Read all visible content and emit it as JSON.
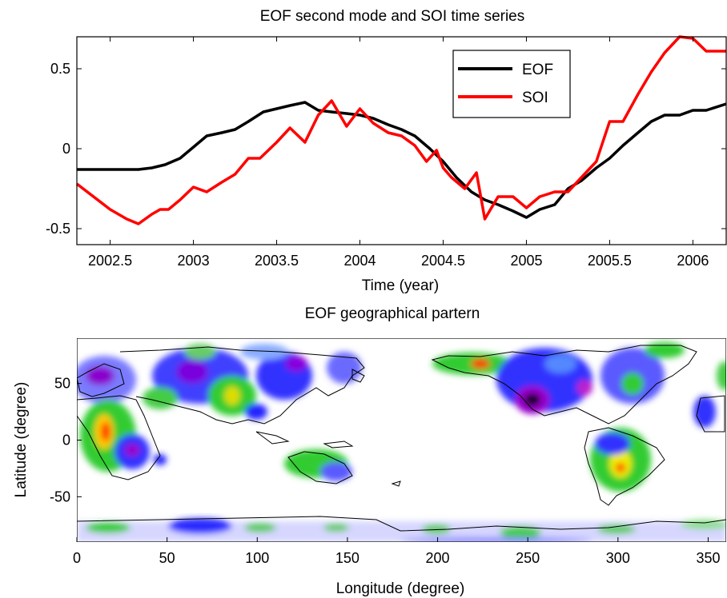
{
  "colors": {
    "eof": "#000000",
    "soi": "#ff0000",
    "map_background": "#ffffff",
    "coastline": "#000000"
  },
  "chart_data": [
    {
      "type": "line",
      "title": "EOF second mode and SOI time series",
      "xlabel": "Time (year)",
      "ylabel": "",
      "xlim": [
        2002.3,
        2006.2
      ],
      "ylim": [
        -0.6,
        0.7
      ],
      "xticks": [
        "2002.5",
        "2003",
        "2003.5",
        "2004",
        "2004.5",
        "2005",
        "2005.5",
        "2006"
      ],
      "yticks": [
        "-0.5",
        "0",
        "0.5"
      ],
      "grid": false,
      "legend": {
        "position": "top-right",
        "entries": [
          "EOF",
          "SOI"
        ]
      },
      "series": [
        {
          "name": "EOF",
          "x": [
            2002.3,
            2002.5,
            2002.67,
            2002.75,
            2002.83,
            2002.92,
            2003.0,
            2003.08,
            2003.17,
            2003.25,
            2003.33,
            2003.42,
            2003.5,
            2003.58,
            2003.67,
            2003.75,
            2003.83,
            2003.92,
            2004.0,
            2004.08,
            2004.17,
            2004.25,
            2004.33,
            2004.42,
            2004.5,
            2004.58,
            2004.67,
            2004.75,
            2004.83,
            2004.92,
            2005.0,
            2005.08,
            2005.17,
            2005.25,
            2005.33,
            2005.42,
            2005.5,
            2005.58,
            2005.67,
            2005.75,
            2005.83,
            2005.92,
            2006.0,
            2006.08,
            2006.2
          ],
          "y": [
            -0.13,
            -0.13,
            -0.13,
            -0.12,
            -0.1,
            -0.06,
            0.01,
            0.08,
            0.1,
            0.12,
            0.17,
            0.23,
            0.25,
            0.27,
            0.29,
            0.24,
            0.23,
            0.22,
            0.21,
            0.19,
            0.15,
            0.12,
            0.08,
            0.0,
            -0.08,
            -0.18,
            -0.27,
            -0.32,
            -0.35,
            -0.39,
            -0.43,
            -0.38,
            -0.35,
            -0.25,
            -0.2,
            -0.12,
            -0.06,
            0.02,
            0.1,
            0.17,
            0.21,
            0.21,
            0.24,
            0.24,
            0.28
          ]
        },
        {
          "name": "SOI",
          "x": [
            2002.3,
            2002.5,
            2002.6,
            2002.67,
            2002.75,
            2002.8,
            2002.85,
            2002.92,
            2003.0,
            2003.08,
            2003.17,
            2003.25,
            2003.33,
            2003.4,
            2003.5,
            2003.58,
            2003.67,
            2003.75,
            2003.83,
            2003.92,
            2004.0,
            2004.08,
            2004.17,
            2004.25,
            2004.33,
            2004.4,
            2004.46,
            2004.5,
            2004.55,
            2004.63,
            2004.7,
            2004.75,
            2004.83,
            2004.92,
            2005.0,
            2005.08,
            2005.17,
            2005.25,
            2005.33,
            2005.42,
            2005.5,
            2005.58,
            2005.67,
            2005.75,
            2005.83,
            2005.92,
            2006.0,
            2006.08,
            2006.2
          ],
          "y": [
            -0.22,
            -0.38,
            -0.44,
            -0.47,
            -0.41,
            -0.38,
            -0.38,
            -0.32,
            -0.24,
            -0.27,
            -0.21,
            -0.16,
            -0.06,
            -0.06,
            0.04,
            0.13,
            0.04,
            0.21,
            0.3,
            0.14,
            0.25,
            0.16,
            0.1,
            0.08,
            0.02,
            -0.08,
            -0.01,
            -0.12,
            -0.18,
            -0.25,
            -0.15,
            -0.44,
            -0.3,
            -0.3,
            -0.37,
            -0.3,
            -0.27,
            -0.27,
            -0.18,
            -0.08,
            0.17,
            0.17,
            0.34,
            0.48,
            0.6,
            0.7,
            0.69,
            0.61,
            0.61
          ]
        }
      ]
    },
    {
      "type": "heatmap",
      "title": "EOF geographical partern",
      "xlabel": "Longitude (degree)",
      "ylabel": "Latitude (degree)",
      "xlim": [
        0,
        360
      ],
      "ylim": [
        -90,
        90
      ],
      "xticks": [
        "0",
        "50",
        "100",
        "150",
        "200",
        "250",
        "300",
        "350"
      ],
      "yticks": [
        "50",
        "0",
        "-50"
      ],
      "colormap": [
        "#ffffff",
        "#2020ff",
        "#9900dd",
        "#22cc22",
        "#e6e600",
        "#ff2200",
        "#000000"
      ]
    }
  ]
}
